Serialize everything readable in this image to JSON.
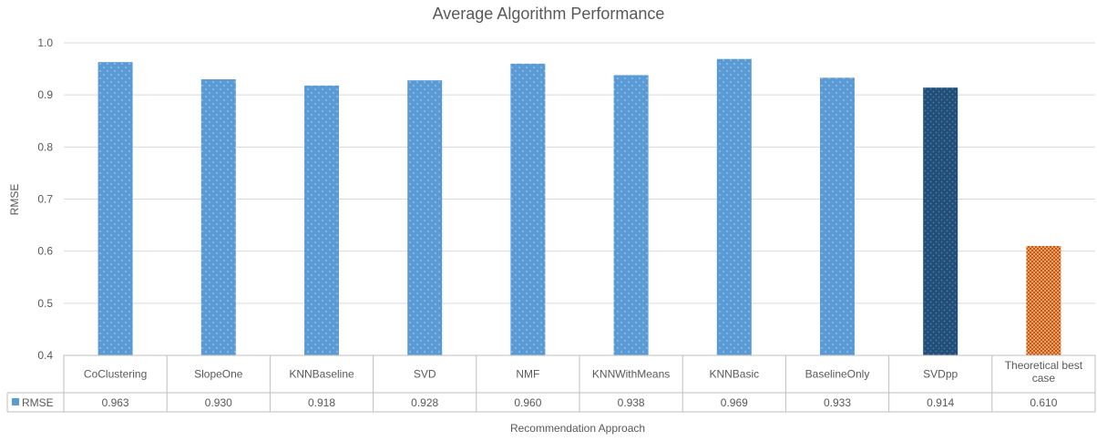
{
  "chart_data": {
    "type": "bar",
    "title": "Average Algorithm Performance",
    "xlabel": "Recommendation Approach",
    "ylabel": "RMSE",
    "ylim": [
      0.4,
      1.0
    ],
    "yticks": [
      "0.4",
      "0.5",
      "0.6",
      "0.7",
      "0.8",
      "0.9",
      "1.0"
    ],
    "grid": true,
    "legend_position": "data-table",
    "categories": [
      "CoClustering",
      "SlopeOne",
      "KNNBaseline",
      "SVD",
      "NMF",
      "KNNWithMeans",
      "KNNBasic",
      "BaselineOnly",
      "SVDpp",
      "Theoretical best case"
    ],
    "series": [
      {
        "name": "RMSE",
        "values": [
          0.963,
          0.93,
          0.918,
          0.928,
          0.96,
          0.938,
          0.969,
          0.933,
          0.914,
          0.61
        ],
        "value_labels": [
          "0.963",
          "0.930",
          "0.918",
          "0.928",
          "0.960",
          "0.938",
          "0.969",
          "0.933",
          "0.914",
          "0.610"
        ],
        "color": "#5b9bd5",
        "highlight_colors": {
          "SVDpp": "#1f4e79",
          "Theoretical best case": "#c55a11"
        }
      }
    ]
  }
}
